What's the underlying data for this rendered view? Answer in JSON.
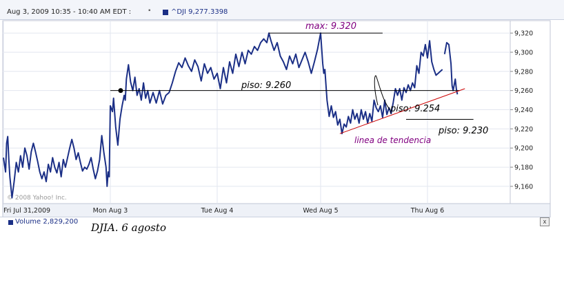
{
  "header": {
    "date_range": "Aug 3, 2009 10:35 - 10:40 AM EDT :",
    "separator": "▪",
    "legend": "^DJI 9,277.3398",
    "legend_color": "#1b2f86"
  },
  "watermark": "© 2008 Yahoo! Inc.",
  "volume": {
    "label": "Volume 2,829,200",
    "close_icon": "close-icon",
    "close_label": "x"
  },
  "caption": "DJIA. 6 agosto",
  "chart_data": {
    "type": "line",
    "title": "",
    "xlabel": "",
    "ylabel": "",
    "x_tick_labels": [
      "Fri Jul 31,2009",
      "Mon Aug 3",
      "Tue Aug 4",
      "Wed Aug 5",
      "Thu Aug 6"
    ],
    "y_ticks": [
      9160,
      9180,
      9200,
      9220,
      9240,
      9260,
      9280,
      9300,
      9320
    ],
    "y_tick_labels": [
      "9,160",
      "9,180",
      "9,200",
      "9,220",
      "9,240",
      "9,260",
      "9,280",
      "9,300",
      "9,320"
    ],
    "ylim": [
      9142,
      9333
    ],
    "xlim": [
      0,
      4.5
    ],
    "grid": true,
    "series": [
      {
        "name": "^DJI",
        "color": "#1b2f86",
        "points": [
          [
            0.0,
            9190
          ],
          [
            0.02,
            9175
          ],
          [
            0.03,
            9205
          ],
          [
            0.04,
            9212
          ],
          [
            0.05,
            9188
          ],
          [
            0.06,
            9170
          ],
          [
            0.08,
            9148
          ],
          [
            0.1,
            9165
          ],
          [
            0.12,
            9185
          ],
          [
            0.14,
            9175
          ],
          [
            0.16,
            9192
          ],
          [
            0.18,
            9180
          ],
          [
            0.2,
            9200
          ],
          [
            0.22,
            9192
          ],
          [
            0.24,
            9178
          ],
          [
            0.26,
            9196
          ],
          [
            0.28,
            9205
          ],
          [
            0.3,
            9196
          ],
          [
            0.32,
            9186
          ],
          [
            0.34,
            9175
          ],
          [
            0.36,
            9168
          ],
          [
            0.38,
            9175
          ],
          [
            0.4,
            9165
          ],
          [
            0.42,
            9183
          ],
          [
            0.44,
            9175
          ],
          [
            0.46,
            9190
          ],
          [
            0.48,
            9180
          ],
          [
            0.5,
            9174
          ],
          [
            0.52,
            9185
          ],
          [
            0.54,
            9170
          ],
          [
            0.56,
            9188
          ],
          [
            0.58,
            9180
          ],
          [
            0.6,
            9190
          ],
          [
            0.62,
            9200
          ],
          [
            0.64,
            9209
          ],
          [
            0.66,
            9200
          ],
          [
            0.68,
            9188
          ],
          [
            0.7,
            9195
          ],
          [
            0.72,
            9185
          ],
          [
            0.74,
            9176
          ],
          [
            0.76,
            9180
          ],
          [
            0.78,
            9178
          ],
          [
            0.8,
            9183
          ],
          [
            0.82,
            9190
          ],
          [
            0.84,
            9178
          ],
          [
            0.86,
            9168
          ],
          [
            0.88,
            9176
          ],
          [
            0.9,
            9188
          ],
          [
            0.92,
            9213
          ],
          [
            0.94,
            9195
          ],
          [
            0.96,
            9180
          ],
          [
            0.97,
            9160
          ],
          [
            0.98,
            9175
          ],
          [
            0.99,
            9170
          ],
          [
            1.0,
            9244
          ],
          [
            1.02,
            9238
          ],
          [
            1.03,
            9252
          ],
          [
            1.05,
            9222
          ],
          [
            1.07,
            9203
          ],
          [
            1.09,
            9230
          ],
          [
            1.11,
            9244
          ],
          [
            1.13,
            9255
          ],
          [
            1.14,
            9250
          ],
          [
            1.15,
            9272
          ],
          [
            1.17,
            9287
          ],
          [
            1.19,
            9269
          ],
          [
            1.21,
            9260
          ],
          [
            1.23,
            9274
          ],
          [
            1.25,
            9255
          ],
          [
            1.27,
            9262
          ],
          [
            1.29,
            9250
          ],
          [
            1.31,
            9268
          ],
          [
            1.33,
            9252
          ],
          [
            1.35,
            9260
          ],
          [
            1.37,
            9247
          ],
          [
            1.4,
            9258
          ],
          [
            1.43,
            9247
          ],
          [
            1.46,
            9260
          ],
          [
            1.49,
            9246
          ],
          [
            1.52,
            9255
          ],
          [
            1.55,
            9258
          ],
          [
            1.58,
            9268
          ],
          [
            1.61,
            9280
          ],
          [
            1.64,
            9289
          ],
          [
            1.67,
            9284
          ],
          [
            1.7,
            9294
          ],
          [
            1.73,
            9286
          ],
          [
            1.76,
            9280
          ],
          [
            1.79,
            9292
          ],
          [
            1.82,
            9285
          ],
          [
            1.85,
            9270
          ],
          [
            1.88,
            9288
          ],
          [
            1.91,
            9278
          ],
          [
            1.94,
            9284
          ],
          [
            1.97,
            9272
          ],
          [
            2.0,
            9278
          ],
          [
            2.03,
            9262
          ],
          [
            2.06,
            9284
          ],
          [
            2.09,
            9268
          ],
          [
            2.12,
            9290
          ],
          [
            2.15,
            9278
          ],
          [
            2.18,
            9298
          ],
          [
            2.21,
            9285
          ],
          [
            2.24,
            9300
          ],
          [
            2.27,
            9288
          ],
          [
            2.3,
            9302
          ],
          [
            2.33,
            9298
          ],
          [
            2.36,
            9306
          ],
          [
            2.39,
            9302
          ],
          [
            2.42,
            9310
          ],
          [
            2.45,
            9314
          ],
          [
            2.48,
            9310
          ],
          [
            2.5,
            9320
          ],
          [
            2.52,
            9312
          ],
          [
            2.55,
            9302
          ],
          [
            2.58,
            9310
          ],
          [
            2.61,
            9296
          ],
          [
            2.64,
            9290
          ],
          [
            2.67,
            9282
          ],
          [
            2.7,
            9296
          ],
          [
            2.73,
            9288
          ],
          [
            2.76,
            9298
          ],
          [
            2.79,
            9284
          ],
          [
            2.82,
            9292
          ],
          [
            2.85,
            9300
          ],
          [
            2.88,
            9290
          ],
          [
            2.91,
            9278
          ],
          [
            2.94,
            9290
          ],
          [
            2.97,
            9303
          ],
          [
            3.0,
            9320
          ],
          [
            3.02,
            9288
          ],
          [
            3.03,
            9278
          ],
          [
            3.04,
            9282
          ],
          [
            3.06,
            9250
          ],
          [
            3.08,
            9233
          ],
          [
            3.1,
            9244
          ],
          [
            3.12,
            9232
          ],
          [
            3.14,
            9238
          ],
          [
            3.16,
            9224
          ],
          [
            3.18,
            9230
          ],
          [
            3.2,
            9215
          ],
          [
            3.22,
            9225
          ],
          [
            3.24,
            9222
          ],
          [
            3.26,
            9233
          ],
          [
            3.28,
            9226
          ],
          [
            3.3,
            9240
          ],
          [
            3.32,
            9230
          ],
          [
            3.34,
            9236
          ],
          [
            3.36,
            9226
          ],
          [
            3.38,
            9240
          ],
          [
            3.4,
            9230
          ],
          [
            3.42,
            9238
          ],
          [
            3.44,
            9226
          ],
          [
            3.46,
            9236
          ],
          [
            3.48,
            9228
          ],
          [
            3.5,
            9250
          ],
          [
            3.52,
            9242
          ],
          [
            3.54,
            9238
          ],
          [
            3.56,
            9244
          ],
          [
            3.58,
            9232
          ],
          [
            3.6,
            9250
          ],
          [
            3.62,
            9235
          ],
          [
            3.64,
            9242
          ],
          [
            3.66,
            9236
          ],
          [
            3.68,
            9248
          ],
          [
            3.7,
            9262
          ],
          [
            3.72,
            9255
          ],
          [
            3.74,
            9262
          ],
          [
            3.76,
            9250
          ],
          [
            3.78,
            9263
          ],
          [
            3.8,
            9258
          ],
          [
            3.82,
            9266
          ],
          [
            3.84,
            9260
          ],
          [
            3.86,
            9268
          ],
          [
            3.88,
            9263
          ],
          [
            3.9,
            9286
          ],
          [
            3.92,
            9278
          ],
          [
            3.94,
            9300
          ],
          [
            3.96,
            9296
          ],
          [
            3.98,
            9308
          ],
          [
            4.0,
            9294
          ],
          [
            4.02,
            9312
          ],
          [
            4.04,
            9290
          ],
          [
            4.06,
            9282
          ],
          [
            4.08,
            9276
          ],
          [
            4.1,
            9278
          ],
          [
            4.12,
            9280
          ],
          [
            4.14,
            9282
          ],
          null,
          [
            4.16,
            9298
          ],
          [
            4.18,
            9310
          ],
          [
            4.2,
            9308
          ],
          [
            4.22,
            9288
          ],
          [
            4.23,
            9265
          ],
          [
            4.24,
            9260
          ],
          [
            4.26,
            9272
          ],
          [
            4.27,
            9262
          ],
          [
            4.28,
            9256
          ]
        ]
      }
    ],
    "annotations": [
      {
        "id": "max",
        "label": "max: 9.320",
        "value": 9320,
        "color": "#800080",
        "line_color": "#000000",
        "x_from": 2.5,
        "x_to": 3.58
      },
      {
        "id": "piso1",
        "label": "piso: 9.260",
        "value": 9260,
        "color": "#000000",
        "line_color": "#000000",
        "x_from": 1.0,
        "x_to": 4.3
      },
      {
        "id": "piso2",
        "label": "piso: 9.254",
        "value": 9254,
        "color": "#000000"
      },
      {
        "id": "piso3",
        "label": "piso: 9.230",
        "value": 9230,
        "color": "#000000",
        "line_color": "#000000",
        "x_from": 3.8,
        "x_to": 4.43
      },
      {
        "id": "trend",
        "label": "linea de tendencia",
        "color": "#800080",
        "line_color": "#cc0000",
        "from": [
          3.18,
          9215
        ],
        "to": [
          4.35,
          9262
        ]
      },
      {
        "id": "dot",
        "point": [
          1.0,
          9260
        ],
        "color": "#000000"
      }
    ]
  }
}
